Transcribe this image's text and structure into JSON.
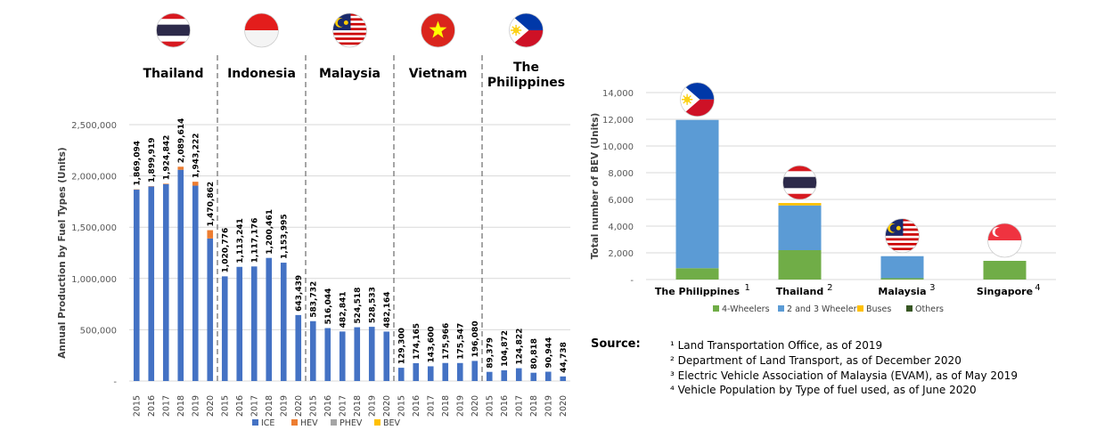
{
  "chart_data": [
    {
      "type": "bar",
      "stacked": true,
      "ylabel": "Annual Production by Fuel Types (Units)",
      "ylim": [
        0,
        2500000
      ],
      "yticks": [
        "-",
        "500,000",
        "1,000,000",
        "1,500,000",
        "2,000,000",
        "2,500,000"
      ],
      "grid": true,
      "legend_position": "bottom",
      "legend": [
        "ICE",
        "HEV",
        "PHEV",
        "BEV"
      ],
      "colors": {
        "ICE": "#4472c4",
        "HEV": "#ed7d31",
        "PHEV": "#a5a5a5",
        "BEV": "#ffc000"
      },
      "years": [
        "2015",
        "2016",
        "2017",
        "2018",
        "2019",
        "2020"
      ],
      "groups": [
        {
          "name": "Thailand",
          "flag": "thailand-flag",
          "labels": [
            "1,869,094",
            "1,899,919",
            "1,924,842",
            "2,089,614",
            "1,943,222",
            "1,470,862"
          ],
          "ice": [
            1866000,
            1897000,
            1920000,
            2060000,
            1905000,
            1390000
          ],
          "hev": [
            3094,
            2919,
            4842,
            29614,
            38222,
            80862
          ]
        },
        {
          "name": "Indonesia",
          "flag": "indonesia-flag",
          "labels": [
            "1,020,776",
            "1,113,241",
            "1,117,176",
            "1,200,461",
            "1,153,995",
            "643,439"
          ],
          "ice": [
            1020776,
            1113241,
            1117176,
            1200461,
            1153995,
            643439
          ],
          "hev": [
            0,
            0,
            0,
            0,
            0,
            0
          ]
        },
        {
          "name": "Malaysia",
          "flag": "malaysia-flag",
          "labels": [
            "583,732",
            "516,044",
            "482,841",
            "524,518",
            "528,533",
            "482,164"
          ],
          "ice": [
            583732,
            516044,
            482841,
            524518,
            528533,
            482164
          ],
          "hev": [
            0,
            0,
            0,
            0,
            0,
            0
          ]
        },
        {
          "name": "Vietnam",
          "flag": "vietnam-flag",
          "labels": [
            "129,300",
            "174,165",
            "143,600",
            "175,966",
            "175,547",
            "196,080"
          ],
          "ice": [
            129300,
            174165,
            143600,
            175966,
            175547,
            196080
          ],
          "hev": [
            0,
            0,
            0,
            0,
            0,
            0
          ]
        },
        {
          "name": "The Philippines",
          "name_lines": [
            "The",
            "Philippines"
          ],
          "flag": "philippines-flag",
          "labels": [
            "89,379",
            "104,872",
            "124,822",
            "80,818",
            "90,944",
            "44,738"
          ],
          "ice": [
            89379,
            104872,
            124822,
            80818,
            90944,
            44738
          ],
          "hev": [
            0,
            0,
            0,
            0,
            0,
            0
          ]
        }
      ]
    },
    {
      "type": "bar",
      "stacked": true,
      "ylabel": "Total number of BEV (Units)",
      "ylim": [
        0,
        14000
      ],
      "yticks": [
        "-",
        "2,000",
        "4,000",
        "6,000",
        "8,000",
        "10,000",
        "12,000",
        "14,000"
      ],
      "grid": true,
      "legend_position": "bottom",
      "legend": [
        "4-Wheelers",
        "2 and 3 Wheelers",
        "Buses",
        "Others"
      ],
      "colors": {
        "4-Wheelers": "#70ad47",
        "2 and 3 Wheelers": "#5b9bd5",
        "Buses": "#ffc000",
        "Others": "#375623"
      },
      "categories": [
        {
          "name": "The Philippines",
          "sup": "1",
          "flag": "philippines-flag",
          "four": 850,
          "two_three": 11100,
          "buses": 0,
          "others": 0
        },
        {
          "name": "Thailand",
          "sup": "2",
          "flag": "thailand-flag",
          "four": 2200,
          "two_three": 3350,
          "buses": 180,
          "others": 0
        },
        {
          "name": "Malaysia",
          "sup": "3",
          "flag": "malaysia-flag",
          "four": 100,
          "two_three": 1650,
          "buses": 0,
          "others": 0
        },
        {
          "name": "Singapore",
          "sup": "4",
          "flag": "singapore-flag",
          "four": 1400,
          "two_three": 0,
          "buses": 0,
          "others": 0
        }
      ]
    }
  ],
  "source": {
    "label": "Source:",
    "lines": [
      "¹ Land Transportation Office, as of 2019",
      "² Department of Land Transport, as of December 2020",
      "³ Electric Vehicle Association of Malaysia (EVAM), as of May 2019",
      "⁴ Vehicle Population by Type of fuel used, as of June 2020"
    ]
  }
}
